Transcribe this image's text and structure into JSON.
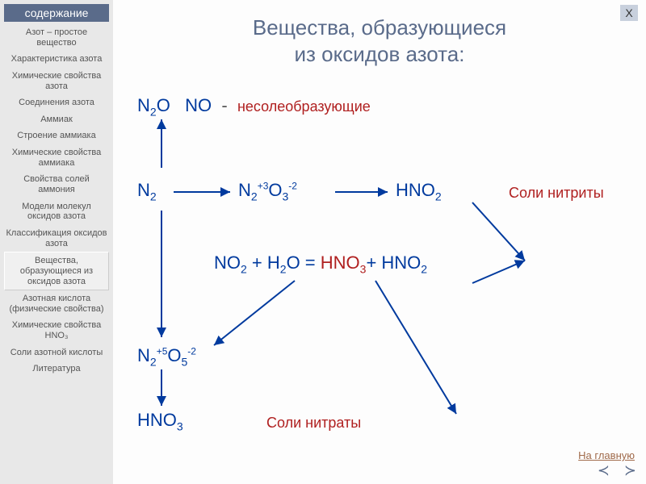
{
  "sidebar": {
    "header": "содержание",
    "items": [
      {
        "label": "Азот – простое вещество",
        "raised": false
      },
      {
        "label": "Характеристика азота",
        "raised": false
      },
      {
        "label": "Химические свойства азота",
        "raised": false
      },
      {
        "label": "Соединения азота",
        "raised": false
      },
      {
        "label": "Аммиак",
        "raised": false
      },
      {
        "label": "Строение аммиака",
        "raised": false
      },
      {
        "label": "Химические свойства аммиака",
        "raised": false
      },
      {
        "label": "Свойства солей аммония",
        "raised": false
      },
      {
        "label": "Модели молекул оксидов азота",
        "raised": false
      },
      {
        "label": "Классификация оксидов азота",
        "raised": false
      },
      {
        "label": "Вещества, образующиеся из оксидов азота",
        "raised": true
      },
      {
        "label": "Азотная кислота (физические свойства)",
        "raised": false
      },
      {
        "label": "Химические свойства HNO₃",
        "raised": false
      },
      {
        "label": "Соли азотной кислоты",
        "raised": false
      },
      {
        "label": "Литература",
        "raised": false
      }
    ]
  },
  "title_line1": "Вещества, образующиеся",
  "title_line2": "из оксидов азота:",
  "close": "Х",
  "home": "На главную",
  "labels": {
    "nonsalt": "несолеобразующие",
    "salts_nitrites": "Соли нитриты",
    "salts_nitrates": "Соли нитраты"
  },
  "arrows": {
    "color": "#003a9e",
    "stroke_width": 2,
    "paths": [
      "M60,115 L60,55",
      "M75,145 L145,145",
      "M60,168 L60,325",
      "M275,145 L340,145",
      "M445,158 L510,230",
      "M445,258 L510,230",
      "M225,255 L125,335",
      "M325,255 L425,420"
    ]
  },
  "colors": {
    "sidebar_bg": "#e8e8e8",
    "sidebar_header_bg": "#5a6b8a",
    "title_color": "#5a6b8a",
    "formula_blue": "#003a9e",
    "formula_red": "#b02020",
    "body_bg": "#fdfdfd"
  }
}
